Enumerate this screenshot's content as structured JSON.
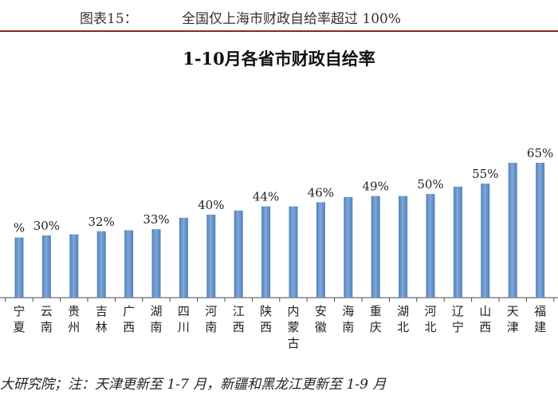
{
  "figure": {
    "number": "图表15：",
    "caption": "全国仅上海市财政自给率超过 100%"
  },
  "footnote": "大研究院；注：天津更新至 1-7 月，新疆和黑龙江更新至 1-9 月",
  "colors": {
    "bar": "#4f81bd",
    "bar_light": "#7fa8d6",
    "axis": "#444444",
    "header_rule": "#8a2a1f"
  },
  "chart_data": {
    "type": "bar",
    "title": "1-10月各省市财政自给率",
    "xlabel": "",
    "ylabel": "",
    "ylim": [
      0,
      0.7
    ],
    "grid": false,
    "categories": [
      "宁夏",
      "云南",
      "贵州",
      "吉林",
      "广西",
      "湖南",
      "四川",
      "河南",
      "江西",
      "陕西",
      "内蒙古",
      "安徽",
      "海南",
      "重庆",
      "湖北",
      "河北",
      "辽宁",
      "山西",
      "天津",
      "福建"
    ],
    "values": [
      0.29,
      0.3,
      0.305,
      0.32,
      0.325,
      0.33,
      0.385,
      0.4,
      0.42,
      0.44,
      0.44,
      0.46,
      0.485,
      0.49,
      0.49,
      0.5,
      0.535,
      0.55,
      0.65,
      0.65
    ],
    "data_labels": [
      "%",
      "30%",
      "",
      "32%",
      "",
      "33%",
      "",
      "40%",
      "",
      "44%",
      "",
      "46%",
      "",
      "49%",
      "",
      "50%",
      "",
      "55%",
      "",
      "65%"
    ]
  }
}
